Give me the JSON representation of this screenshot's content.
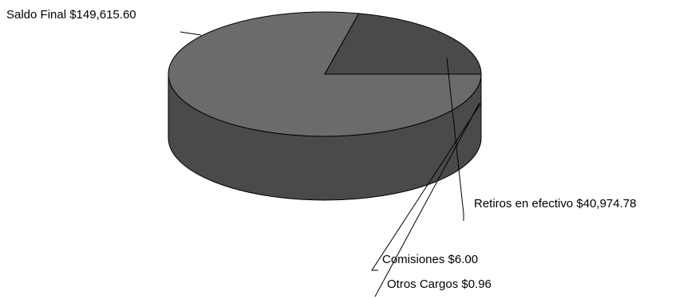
{
  "chart_data": {
    "type": "pie",
    "style": "3d",
    "title": "",
    "slices": [
      {
        "label": "Saldo Final",
        "value": 149615.6,
        "value_text": "$149,615.60"
      },
      {
        "label": "Retiros en efectivo",
        "value": 40974.78,
        "value_text": "$40,974.78"
      },
      {
        "label": "Comisiones",
        "value": 6.0,
        "value_text": "$6.00"
      },
      {
        "label": "Otros Cargos",
        "value": 0.96,
        "value_text": "$0.96"
      }
    ],
    "colors": {
      "slice_top": [
        "#6b6b6b",
        "#4a4a4a",
        "#4a4a4a",
        "#4a4a4a"
      ],
      "slice_side": [
        "#4a4a4a",
        "#4a4a4a",
        "#4a4a4a",
        "#4a4a4a"
      ],
      "outline": "#000000"
    }
  }
}
